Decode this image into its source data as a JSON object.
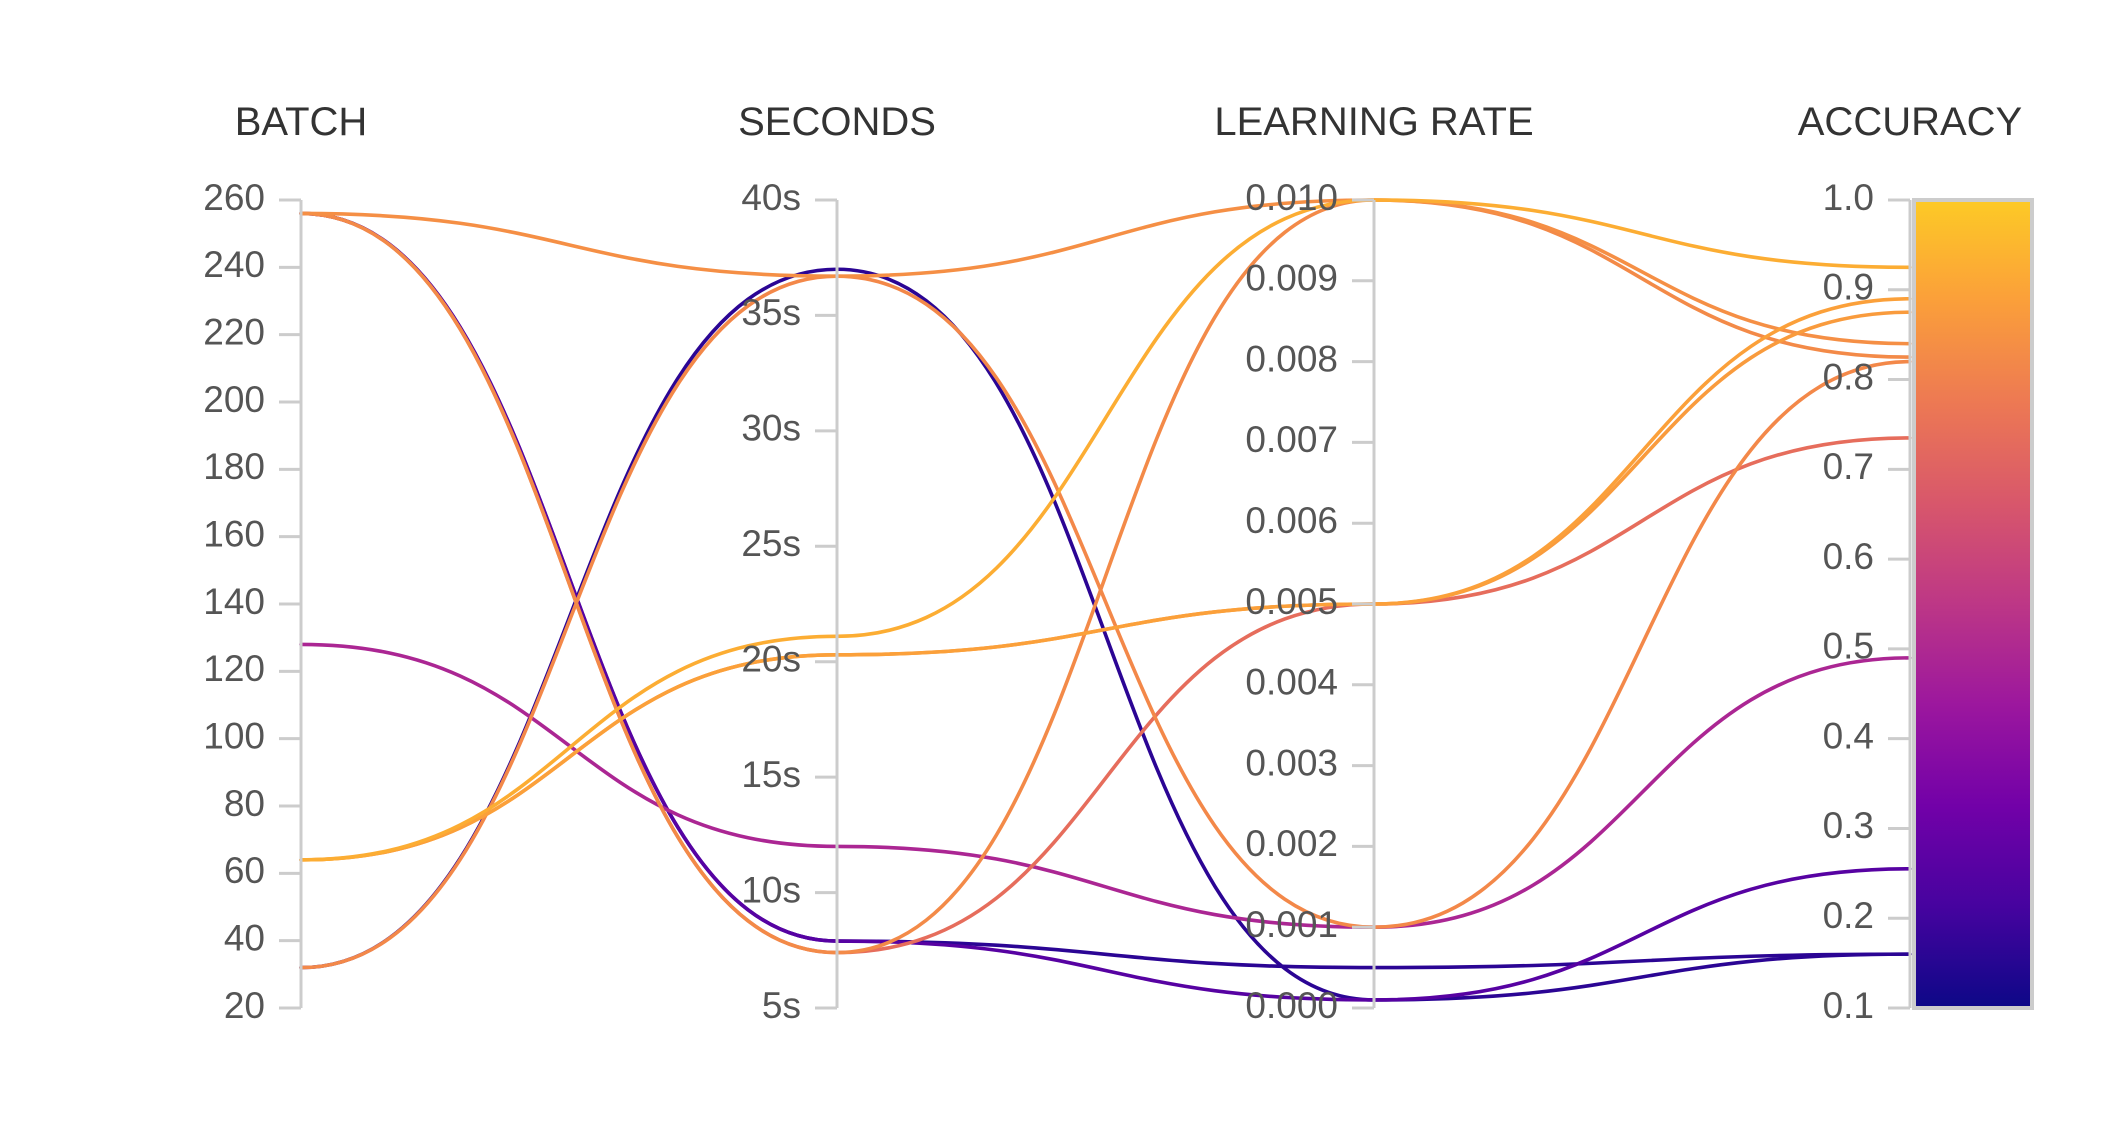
{
  "chart_data": {
    "type": "parallel-coordinates",
    "dimensions": [
      {
        "name": "BATCH",
        "range": [
          20,
          260
        ],
        "ticks": [
          20,
          40,
          60,
          80,
          100,
          120,
          140,
          160,
          180,
          200,
          220,
          240,
          260
        ],
        "tick_labels": [
          "20",
          "40",
          "60",
          "80",
          "100",
          "120",
          "140",
          "160",
          "180",
          "200",
          "220",
          "240",
          "260"
        ]
      },
      {
        "name": "SECONDS",
        "range": [
          5,
          40
        ],
        "ticks": [
          5,
          10,
          15,
          20,
          25,
          30,
          35,
          40
        ],
        "tick_labels": [
          "5s",
          "10s",
          "15s",
          "20s",
          "25s",
          "30s",
          "35s",
          "40s"
        ]
      },
      {
        "name": "LEARNING RATE",
        "range": [
          0,
          0.01
        ],
        "ticks": [
          0,
          0.001,
          0.002,
          0.003,
          0.004,
          0.005,
          0.006,
          0.007,
          0.008,
          0.009,
          0.01
        ],
        "tick_labels": [
          "0.000",
          "0.001",
          "0.002",
          "0.003",
          "0.004",
          "0.005",
          "0.006",
          "0.007",
          "0.008",
          "0.009",
          "0.010"
        ]
      },
      {
        "name": "ACCURACY",
        "range": [
          0.1,
          1.0
        ],
        "ticks": [
          0.1,
          0.2,
          0.3,
          0.4,
          0.5,
          0.6,
          0.7,
          0.8,
          0.9,
          1.0
        ],
        "tick_labels": [
          "0.1",
          "0.2",
          "0.3",
          "0.4",
          "0.5",
          "0.6",
          "0.7",
          "0.8",
          "0.9",
          "1.0"
        ]
      }
    ],
    "color_dimension": "ACCURACY",
    "colorscale": [
      "#0d0887",
      "#46039f",
      "#7201a8",
      "#9c179e",
      "#bd3786",
      "#d8576b",
      "#ed7953",
      "#fb9f3a",
      "#fdca26"
    ],
    "lines": [
      {
        "values": [
          64,
          21.1,
          0.01,
          0.925
        ]
      },
      {
        "values": [
          64,
          20.3,
          0.005,
          0.89
        ]
      },
      {
        "values": [
          64,
          20.3,
          0.005,
          0.875
        ]
      },
      {
        "values": [
          256,
          36.7,
          0.01,
          0.84
        ]
      },
      {
        "values": [
          256,
          7.4,
          0.01,
          0.825
        ]
      },
      {
        "values": [
          256,
          7.4,
          0.005,
          0.735
        ]
      },
      {
        "values": [
          32,
          36.7,
          0.001,
          0.82
        ]
      },
      {
        "values": [
          128,
          12.0,
          0.001,
          0.49
        ]
      },
      {
        "values": [
          256,
          7.9,
          0.0001,
          0.255
        ]
      },
      {
        "values": [
          32,
          37.0,
          0.0001,
          0.16
        ]
      },
      {
        "values": [
          256,
          7.9,
          0.0005,
          0.16
        ]
      }
    ]
  }
}
